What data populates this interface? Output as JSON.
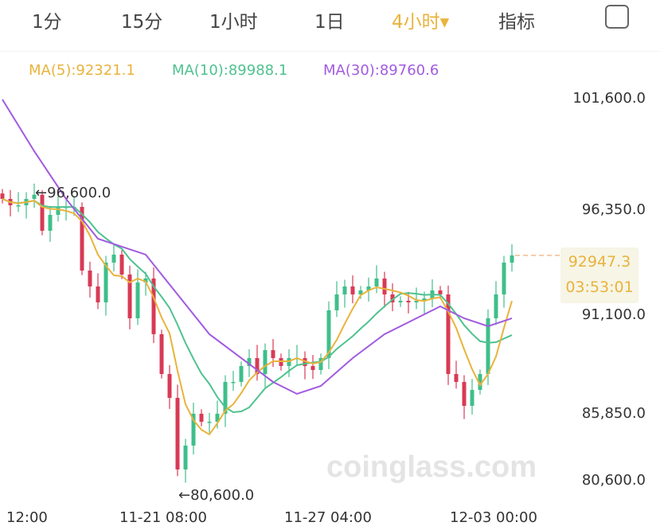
{
  "tabs": [
    {
      "label": "1分"
    },
    {
      "label": "15分"
    },
    {
      "label": "1小时"
    },
    {
      "label": "1日"
    },
    {
      "label": "4小时▾",
      "active": true
    },
    {
      "label": "指标"
    }
  ],
  "expand_icon": "expand-icon",
  "ma_legend": {
    "ma5": "MA(5):92321.1",
    "ma10": "MA(10):89988.1",
    "ma30": "MA(30):89760.6"
  },
  "colors": {
    "up": "#3fbf8a",
    "down": "#d83a55",
    "ma5": "#e9b33c",
    "ma10": "#4fc28f",
    "ma30": "#a15be0"
  },
  "watermark": "coinglass.com",
  "current": {
    "price": "92947.3",
    "countdown": "03:53:01"
  },
  "chart_data": {
    "type": "candlestick",
    "ylim": [
      80600,
      101600
    ],
    "yticks": [
      "101,600.0",
      "96,350.0",
      "91,100.0",
      "85,850.0",
      "80,600.0"
    ],
    "ytick_values": [
      101600,
      96350,
      91100,
      85850,
      80600
    ],
    "xticks": [
      {
        "label": "12:00",
        "index": 3
      },
      {
        "label": "11-21 08:00",
        "index": 20.5
      },
      {
        "label": "11-27 04:00",
        "index": 42
      },
      {
        "label": "12-03 00:00",
        "index": 62
      }
    ],
    "annotations": {
      "high": "←96,600.0",
      "low": "←80,600.0"
    },
    "closes": [
      96065,
      95713,
      95713,
      96065,
      96300,
      94308,
      95186,
      95600,
      95626,
      95626,
      92111,
      91233,
      90354,
      92550,
      92990,
      91891,
      89475,
      91452,
      91672,
      88597,
      86400,
      85082,
      81130,
      82448,
      84205,
      83764,
      83764,
      84205,
      85961,
      85961,
      86840,
      87279,
      86400,
      87718,
      87279,
      86840,
      87279,
      87279,
      86840,
      86620,
      87279,
      89915,
      90793,
      91233,
      90793,
      91013,
      91233,
      91672,
      90793,
      90354,
      90442,
      90354,
      90442,
      90574,
      91013,
      90793,
      86400,
      85961,
      84643,
      85522,
      86400,
      89475,
      90793,
      92550,
      92947.3
    ],
    "ma30": [
      [
        0,
        101556
      ],
      [
        4,
        98701
      ],
      [
        8,
        96065
      ],
      [
        12,
        93868
      ],
      [
        18,
        92990
      ],
      [
        22,
        90793
      ],
      [
        26,
        88597
      ],
      [
        30,
        87279
      ],
      [
        34,
        85961
      ],
      [
        37,
        85302
      ],
      [
        40,
        85741
      ],
      [
        44,
        87279
      ],
      [
        48,
        88597
      ],
      [
        52,
        89475
      ],
      [
        55,
        90135
      ],
      [
        58,
        89475
      ],
      [
        61,
        89036
      ],
      [
        64,
        89475
      ]
    ]
  }
}
